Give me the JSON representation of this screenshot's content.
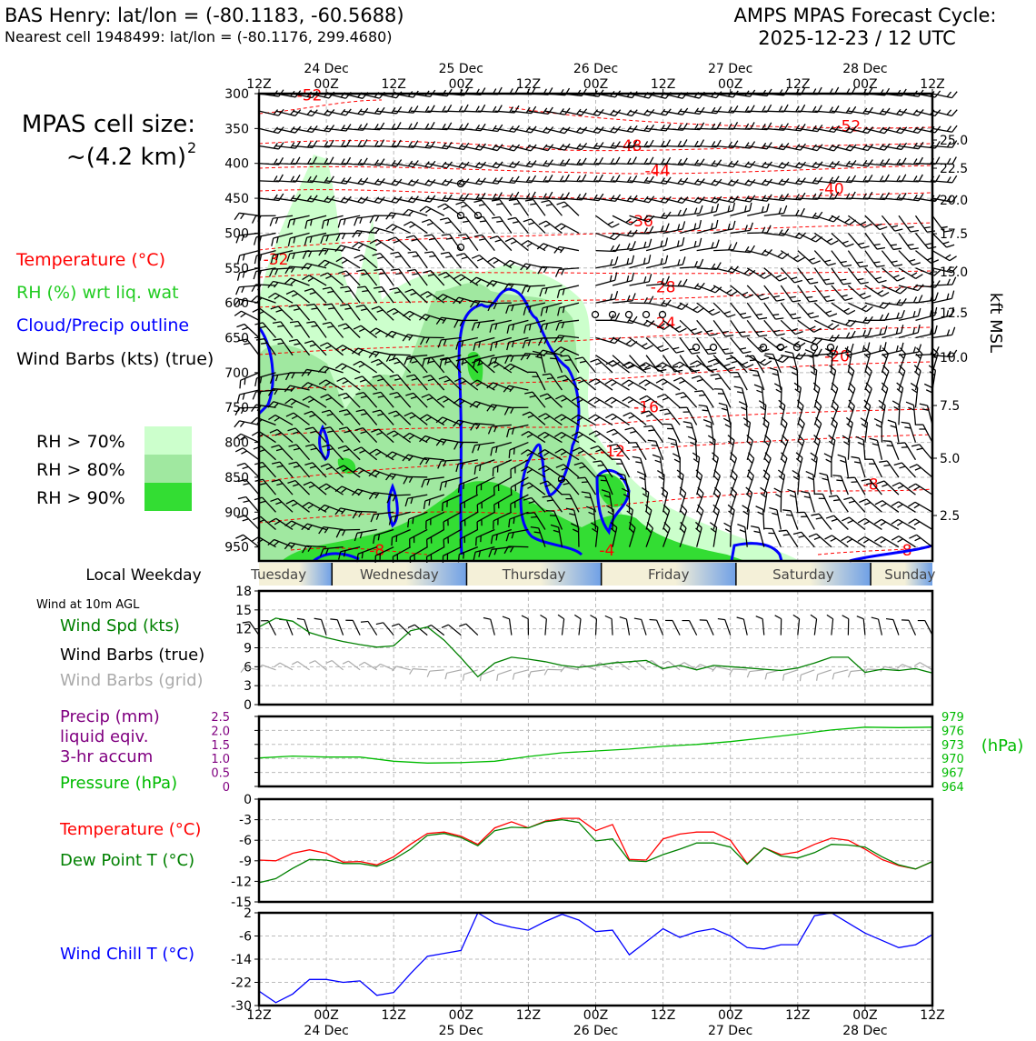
{
  "header": {
    "station": "BAS Henry: lat/lon = (-80.1183, -60.5688)",
    "nearest_cell": "Nearest cell 1948499: lat/lon = (-80.1176, 299.4680)",
    "cycle_title": "AMPS MPAS Forecast Cycle:",
    "cycle_time": "2025-12-23 / 12 UTC"
  },
  "cell_size": {
    "line1": "MPAS cell size:",
    "line2": "~(4.2 km)",
    "exponent": "2"
  },
  "legend_upper": {
    "temperature": "Temperature (°C)",
    "rh": "RH (%) wrt liq. wat",
    "cloud": "Cloud/Precip outline",
    "barbs": "Wind Barbs (kts) (true)",
    "rh70": "RH > 70%",
    "rh80": "RH > 80%",
    "rh90": "RH > 90%"
  },
  "colors": {
    "temp": "#ff0000",
    "rh_label": "#22cc22",
    "cloud": "#0000ff",
    "rh70": "#ccffcc",
    "rh80": "#a0e8a0",
    "rh90": "#33dd33",
    "precip": "#800080",
    "pressure": "#00bb00",
    "dew": "#008000",
    "wind_spd": "#008000",
    "grid_barb": "#aaaaaa",
    "wind_chill": "#0000ff"
  },
  "time_axis": {
    "ticks": [
      "12Z",
      "00Z",
      "12Z",
      "00Z",
      "12Z",
      "00Z",
      "12Z",
      "00Z",
      "12Z",
      "00Z",
      "12Z"
    ],
    "dates": [
      "24 Dec",
      "25 Dec",
      "26 Dec",
      "27 Dec",
      "28 Dec"
    ]
  },
  "weekday": {
    "label": "Local Weekday",
    "days": [
      "Tuesday",
      "Wednesday",
      "Thursday",
      "Friday",
      "Saturday",
      "Sunday"
    ]
  },
  "right_axis": {
    "label": "kft MSL",
    "ticks": [
      "25.0",
      "22.5",
      "20.0",
      "17.5",
      "15.0",
      "12.5",
      "10.0",
      "7.5",
      "5.0",
      "2.5"
    ]
  },
  "chart_data": [
    {
      "type": "time-height cross-section",
      "ylabel": "Pressure (hPa)",
      "yticks": [
        300,
        350,
        400,
        450,
        500,
        550,
        600,
        650,
        700,
        750,
        800,
        850,
        900,
        950
      ],
      "ylim": [
        300,
        970
      ],
      "x_hours_from_start": [
        0,
        120
      ],
      "isotherm_labels": [
        {
          "value": "-52",
          "hour": 9,
          "p": 310
        },
        {
          "value": "-52",
          "hour": 105,
          "p": 354
        },
        {
          "value": "-48",
          "hour": 66,
          "p": 382
        },
        {
          "value": "-44",
          "hour": 71,
          "p": 418
        },
        {
          "value": "-40",
          "hour": 102,
          "p": 444
        },
        {
          "value": "-36",
          "hour": 68,
          "p": 490
        },
        {
          "value": "-32",
          "hour": 3,
          "p": 545
        },
        {
          "value": "-28",
          "hour": 72,
          "p": 585
        },
        {
          "value": "-24",
          "hour": 72,
          "p": 636
        },
        {
          "value": "-20",
          "hour": 103,
          "p": 684
        },
        {
          "value": "-16",
          "hour": 69,
          "p": 757
        },
        {
          "value": "-12",
          "hour": 63,
          "p": 820
        },
        {
          "value": "-8",
          "hour": 109,
          "p": 868
        },
        {
          "value": "-8",
          "hour": 21,
          "p": 962
        },
        {
          "value": "-4",
          "hour": 62,
          "p": 962
        },
        {
          "value": "-8",
          "hour": 115,
          "p": 962
        }
      ],
      "legend": [
        "Temperature (°C)",
        "RH (%) wrt liq. wat",
        "Cloud/Precip outline",
        "Wind Barbs (kts) (true)"
      ]
    },
    {
      "type": "line",
      "title": "Wind at 10m AGL",
      "legend": [
        "Wind Spd (kts)",
        "Wind Barbs (true)",
        "Wind Barbs (grid)"
      ],
      "ylim": [
        0,
        18
      ],
      "yticks": [
        "0",
        "3",
        "6",
        "9",
        "12",
        "15",
        "18"
      ],
      "x": [
        0,
        3,
        6,
        9,
        12,
        15,
        18,
        21,
        24,
        27,
        30,
        33,
        36,
        39,
        42,
        45,
        48,
        51,
        54,
        57,
        60,
        63,
        66,
        69,
        72,
        75,
        78,
        81,
        84,
        87,
        90,
        93,
        96,
        99,
        102,
        105,
        108,
        111,
        114,
        117,
        120
      ],
      "series": [
        {
          "name": "Wind Spd (kts)",
          "values": [
            12.3,
            13.7,
            13.2,
            11.4,
            10.6,
            10.0,
            9.5,
            9.1,
            9.3,
            11.7,
            12.3,
            10.2,
            7.4,
            4.4,
            6.6,
            7.5,
            7.2,
            6.8,
            6.2,
            5.9,
            6.2,
            6.6,
            6.8,
            7.0,
            5.7,
            6.2,
            5.5,
            6.2,
            6.0,
            5.8,
            5.6,
            5.4,
            5.8,
            6.6,
            7.5,
            7.5,
            5.1,
            5.6,
            5.4,
            5.7,
            5.0
          ]
        }
      ]
    },
    {
      "type": "line",
      "legend": [
        "Precip (mm) liquid eqiv. 3-hr accum",
        "Pressure (hPa)"
      ],
      "precip_label_lines": [
        "Precip (mm)",
        "liquid eqiv.",
        "3-hr accum"
      ],
      "precip_yticks": [
        "0",
        "0.5",
        "1.0",
        "1.5",
        "2.0",
        "2.5"
      ],
      "pressure_yticks": [
        "964",
        "967",
        "970",
        "973",
        "976",
        "979"
      ],
      "pressure_unit": "(hPa)",
      "ylim_pressure": [
        964,
        979
      ],
      "x": [
        0,
        6,
        12,
        18,
        24,
        30,
        36,
        42,
        48,
        54,
        60,
        66,
        72,
        78,
        84,
        90,
        96,
        102,
        108,
        114,
        120
      ],
      "series": [
        {
          "name": "Pressure (hPa)",
          "values": [
            970.1,
            970.5,
            970.3,
            970.3,
            969.4,
            969.0,
            969.1,
            969.4,
            970.4,
            971.2,
            971.6,
            972.0,
            972.6,
            973.0,
            973.6,
            974.4,
            975.2,
            976.1,
            976.7,
            976.6,
            976.7
          ]
        },
        {
          "name": "Precip (mm)",
          "values": [
            0,
            0,
            0,
            0,
            0,
            0,
            0,
            0,
            0,
            0,
            0,
            0,
            0,
            0,
            0,
            0,
            0,
            0,
            0,
            0,
            0
          ]
        }
      ]
    },
    {
      "type": "line",
      "legend": [
        "Temperature (°C)",
        "Dew Point T (°C)"
      ],
      "ylim": [
        -15,
        0
      ],
      "yticks": [
        "0",
        "-3",
        "-6",
        "-9",
        "-12",
        "-15"
      ],
      "x": [
        0,
        3,
        6,
        9,
        12,
        15,
        18,
        21,
        24,
        27,
        30,
        33,
        36,
        39,
        42,
        45,
        48,
        51,
        54,
        57,
        60,
        63,
        66,
        69,
        72,
        75,
        78,
        81,
        84,
        87,
        90,
        93,
        96,
        99,
        102,
        105,
        108,
        111,
        114,
        117,
        120
      ],
      "series": [
        {
          "name": "Temperature (°C)",
          "values": [
            -8.9,
            -9.0,
            -7.9,
            -7.4,
            -7.9,
            -9.2,
            -9.1,
            -9.6,
            -8.4,
            -6.6,
            -5.0,
            -4.8,
            -5.4,
            -6.6,
            -4.2,
            -3.3,
            -4.2,
            -3.2,
            -2.8,
            -2.8,
            -4.6,
            -3.7,
            -8.8,
            -8.9,
            -5.8,
            -5.1,
            -4.8,
            -4.8,
            -6.0,
            -9.4,
            -7.1,
            -8.1,
            -7.7,
            -6.6,
            -5.7,
            -6.0,
            -7.3,
            -8.8,
            -9.7,
            -10.2,
            -9.1
          ]
        },
        {
          "name": "Dew Point T (°C)",
          "values": [
            -12.2,
            -11.6,
            -10.1,
            -8.8,
            -8.9,
            -9.4,
            -9.4,
            -9.8,
            -8.8,
            -7.3,
            -5.3,
            -5.0,
            -5.6,
            -6.8,
            -4.6,
            -4.1,
            -4.2,
            -3.3,
            -3.0,
            -3.4,
            -6.1,
            -5.8,
            -9.0,
            -9.1,
            -8.1,
            -7.3,
            -6.4,
            -6.4,
            -7.0,
            -9.5,
            -7.1,
            -8.3,
            -8.6,
            -7.8,
            -6.6,
            -6.7,
            -7.0,
            -8.4,
            -9.6,
            -10.2,
            -9.1
          ]
        }
      ]
    },
    {
      "type": "line",
      "legend": [
        "Wind Chill T (°C)"
      ],
      "ylim": [
        -30,
        2
      ],
      "yticks": [
        "2",
        "-6",
        "-14",
        "-22",
        "-30"
      ],
      "x": [
        0,
        3,
        6,
        9,
        12,
        15,
        18,
        21,
        24,
        27,
        30,
        33,
        36,
        39,
        42,
        45,
        48,
        51,
        54,
        57,
        60,
        63,
        66,
        69,
        72,
        75,
        78,
        81,
        84,
        87,
        90,
        93,
        96,
        99,
        102,
        105,
        108,
        111,
        114,
        117,
        120
      ],
      "series": [
        {
          "name": "Wind Chill T (°C)",
          "values": [
            -25.0,
            -29.0,
            -26.0,
            -21.0,
            -21.0,
            -22.0,
            -21.5,
            -26.5,
            -25.5,
            -19.0,
            -13.0,
            -12.0,
            -11.0,
            2.0,
            -1.5,
            -3.0,
            -4.0,
            -1.0,
            1.5,
            -0.5,
            -4.5,
            -4.0,
            -12.5,
            -8.0,
            -3.5,
            -6.5,
            -4.5,
            -3.5,
            -6.0,
            -10.0,
            -10.5,
            -9.0,
            -9.0,
            1.0,
            2.0,
            -1.5,
            -5.0,
            -7.5,
            -10.0,
            -9.0,
            -5.5
          ]
        }
      ]
    }
  ],
  "panel_labels": {
    "wind_title": "Wind at 10m AGL",
    "wind_spd": "Wind Spd (kts)",
    "wind_barbs_true": "Wind Barbs (true)",
    "wind_barbs_grid": "Wind Barbs (grid)",
    "pressure": "Pressure (hPa)",
    "temp": "Temperature (°C)",
    "dew": "Dew Point T (°C)",
    "wind_chill": "Wind Chill T (°C)"
  }
}
